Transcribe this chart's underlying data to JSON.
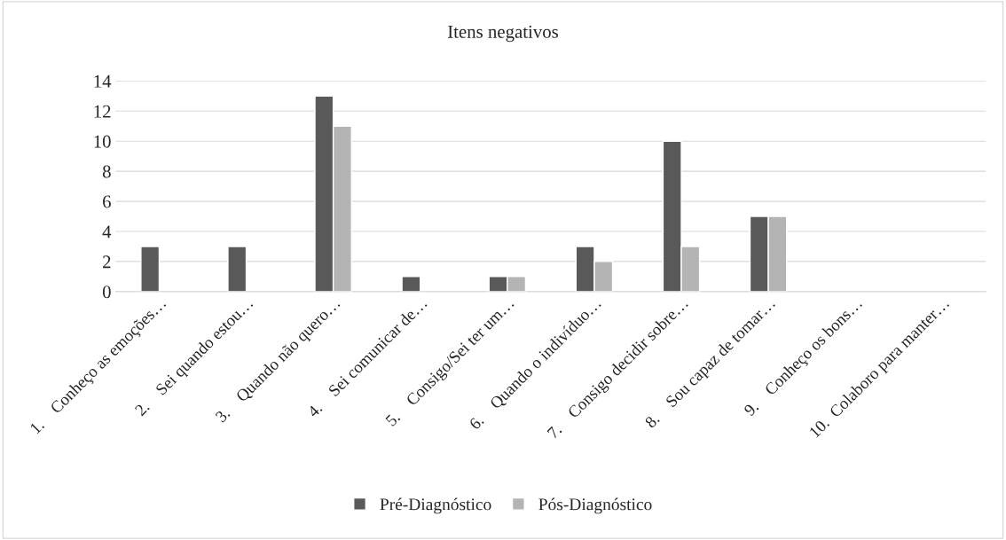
{
  "chart_data": {
    "type": "bar",
    "title": "Itens negativos",
    "categories": [
      "1.    Conheço as emoções…",
      "2.    Sei quando estou…",
      "3.    Quando não quero…",
      "4.    Sei comunicar de…",
      "5.    Consigo/Sei ter um…",
      "6.    Quando o indivíduo…",
      "7.    Consigo decidir sobre…",
      "8.    Sou capaz de tomar…",
      "9.    Conheço os bons…",
      "10.  Colaboro para manter…"
    ],
    "series": [
      {
        "name": "Pré-Diagnóstico",
        "color": "#595959",
        "values": [
          3,
          3,
          13,
          1,
          1,
          3,
          10,
          5,
          null,
          null
        ]
      },
      {
        "name": "Pós-Diagnóstico",
        "color": "#b4b4b4",
        "values": [
          null,
          null,
          11,
          null,
          1,
          2,
          3,
          5,
          null,
          null
        ]
      }
    ],
    "ylim": [
      0,
      14
    ],
    "yticks": [
      0,
      2,
      4,
      6,
      8,
      10,
      12,
      14
    ],
    "grid": "y",
    "legend": "bottom"
  }
}
